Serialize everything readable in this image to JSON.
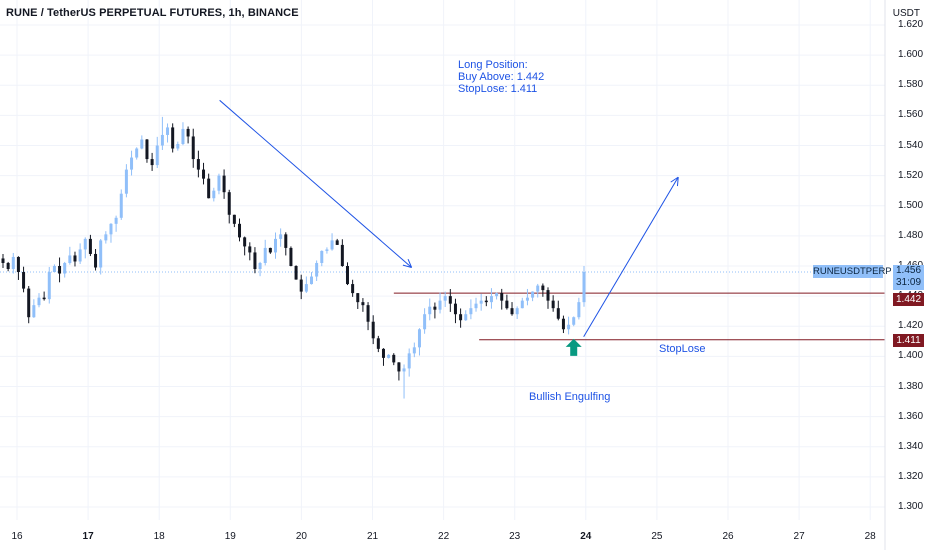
{
  "header": {
    "title": "RUNE / TetherUS PERPETUAL FUTURES, 1h, BINANCE",
    "currency": "USDT"
  },
  "annotations": {
    "trade_note": [
      "Long Position:",
      "Buy Above: 1.442",
      "StopLose: 1.411"
    ],
    "pattern": "Bullish Engulfing",
    "stop_label": "StopLose"
  },
  "price_tags": {
    "symbol": "RUNEUSDTPERP",
    "last_price": "1.456",
    "countdown": "31:09",
    "buy_level": "1.442",
    "stop_level": "1.411"
  },
  "colors": {
    "candle_up": "#90bff9",
    "candle_down": "#131722",
    "level_line": "#801922",
    "annotation": "#1e53e5",
    "signal_arrow": "#089981"
  },
  "chart_data": {
    "type": "candlestick",
    "interval": "1h",
    "x_ticks": [
      "16",
      "17",
      "18",
      "19",
      "20",
      "21",
      "22",
      "23",
      "24",
      "25",
      "26",
      "27",
      "28"
    ],
    "bold_x_ticks": [
      "17",
      "24"
    ],
    "y_ticks": [
      "1.300",
      "1.320",
      "1.340",
      "1.360",
      "1.380",
      "1.400",
      "1.420",
      "1.440",
      "1.460",
      "1.480",
      "1.500",
      "1.520",
      "1.540",
      "1.560",
      "1.580",
      "1.600",
      "1.620"
    ],
    "ylim": [
      1.295,
      1.625
    ],
    "horizontal_levels": [
      {
        "price": 1.442,
        "from_day": 21.3
      },
      {
        "price": 1.411,
        "from_day": 22.5
      }
    ],
    "trend_arrows": [
      {
        "from": {
          "day": 18.85,
          "price": 1.57
        },
        "to": {
          "day": 21.55,
          "price": 1.459
        }
      },
      {
        "from": {
          "day": 23.97,
          "price": 1.413
        },
        "to": {
          "day": 25.3,
          "price": 1.519
        }
      }
    ],
    "signal_arrow": {
      "day": 23.83,
      "price": 1.407
    },
    "close_series": [
      1.462,
      1.458,
      1.466,
      1.456,
      1.445,
      1.426,
      1.434,
      1.439,
      1.438,
      1.456,
      1.46,
      1.455,
      1.462,
      1.467,
      1.463,
      1.471,
      1.478,
      1.468,
      1.459,
      1.477,
      1.481,
      1.488,
      1.492,
      1.508,
      1.524,
      1.532,
      1.538,
      1.544,
      1.531,
      1.527,
      1.54,
      1.547,
      1.552,
      1.538,
      1.541,
      1.551,
      1.546,
      1.531,
      1.524,
      1.518,
      1.505,
      1.51,
      1.52,
      1.509,
      1.494,
      1.488,
      1.479,
      1.473,
      1.469,
      1.458,
      1.462,
      1.472,
      1.469,
      1.478,
      1.481,
      1.472,
      1.46,
      1.451,
      1.443,
      1.448,
      1.453,
      1.462,
      1.47,
      1.471,
      1.477,
      1.474,
      1.46,
      1.448,
      1.442,
      1.436,
      1.434,
      1.423,
      1.412,
      1.405,
      1.399,
      1.401,
      1.396,
      1.39,
      1.392,
      1.402,
      1.406,
      1.418,
      1.428,
      1.433,
      1.431,
      1.437,
      1.44,
      1.435,
      1.428,
      1.424,
      1.428,
      1.432,
      1.435,
      1.437,
      1.436,
      1.44,
      1.442,
      1.437,
      1.432,
      1.428,
      1.432,
      1.437,
      1.439,
      1.443,
      1.447,
      1.444,
      1.437,
      1.432,
      1.425,
      1.418,
      1.421,
      1.426,
      1.436,
      1.456
    ]
  }
}
